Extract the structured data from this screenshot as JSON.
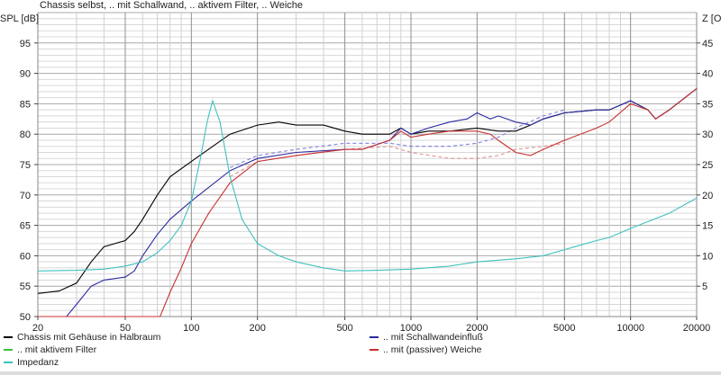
{
  "chart_data": {
    "type": "line",
    "title": "Chassis selbst, .. mit Schallwand, .. aktivem Filter, .. Weiche",
    "xlabel": "",
    "ylabel": "SPL [dB]",
    "y2label": "Z [O",
    "xscale": "log",
    "xlim": [
      20,
      20000
    ],
    "ylim": [
      50,
      100
    ],
    "y2lim": [
      0,
      50
    ],
    "grid": true,
    "legend_placement": "bottom",
    "xticks": [
      "20",
      "50",
      "100",
      "200",
      "500",
      "1000",
      "2000",
      "5000",
      "10000",
      "20000"
    ],
    "yticks": [
      "50",
      "55",
      "60",
      "65",
      "70",
      "75",
      "80",
      "85",
      "90",
      "95"
    ],
    "y2ticks": [
      "5",
      "10",
      "15",
      "20",
      "25",
      "30",
      "35",
      "40",
      "45"
    ],
    "series": [
      {
        "name": "Chassis mit Gehäuse in Halbraum",
        "color": "#000000",
        "axis": "left",
        "x": [
          20,
          25,
          30,
          35,
          40,
          50,
          55,
          60,
          70,
          80,
          100,
          150,
          200,
          250,
          300,
          400,
          500,
          600,
          800,
          900,
          1000,
          1200,
          1500,
          2000,
          2500,
          3000,
          3500,
          4000,
          5000,
          7000,
          8000,
          10000,
          12000,
          13000,
          15000,
          20000
        ],
        "y": [
          53.8,
          54.2,
          55.5,
          59,
          61.5,
          62.5,
          64,
          66,
          70,
          73,
          75.5,
          80,
          81.5,
          82,
          81.5,
          81.5,
          80.5,
          80,
          80,
          81,
          80,
          80.5,
          80.5,
          81,
          80.5,
          80.5,
          81.5,
          82.5,
          83.5,
          84,
          84,
          85.5,
          84,
          82.5,
          84,
          87.5
        ]
      },
      {
        "name": ".. mit Schallwandeinfluß",
        "color": "#2a2aa0",
        "axis": "left",
        "x": [
          20,
          27,
          30,
          35,
          40,
          50,
          55,
          60,
          70,
          80,
          100,
          150,
          200,
          300,
          500,
          600,
          800,
          900,
          1000,
          1200,
          1500,
          1800,
          2000,
          2300,
          2500,
          3000,
          3500,
          4000,
          5000,
          7000,
          8000,
          10000,
          12000,
          13000,
          15000,
          20000
        ],
        "y": [
          50,
          50,
          52,
          55,
          56,
          56.5,
          57.5,
          60,
          63.5,
          66,
          69,
          74,
          76,
          77,
          77.5,
          77.5,
          79,
          81,
          80,
          81,
          82,
          82.5,
          83.5,
          82.5,
          83,
          82,
          81.5,
          82.5,
          83.5,
          84,
          84,
          85.5,
          84,
          82.5,
          84,
          87.5
        ]
      },
      {
        "name": ".. mit aktivem Filter",
        "color": "#40c040",
        "axis": "left",
        "x": [],
        "y": []
      },
      {
        "name": ".. mit (passiver) Weiche",
        "color": "#c83030",
        "axis": "left",
        "x": [
          20,
          50,
          72,
          80,
          90,
          100,
          120,
          150,
          200,
          300,
          500,
          600,
          800,
          900,
          1000,
          1200,
          1500,
          1800,
          2000,
          2300,
          2500,
          3000,
          3500,
          4000,
          5000,
          7000,
          8000,
          10000,
          12000,
          13000,
          15000,
          20000
        ],
        "y": [
          50,
          50,
          50,
          54,
          58,
          62,
          67,
          72,
          75.5,
          76.5,
          77.5,
          77.5,
          79,
          80.5,
          79.5,
          80,
          80.5,
          80.5,
          80.5,
          80,
          79,
          77,
          76.5,
          77.5,
          79,
          81,
          82,
          85,
          84,
          82.5,
          84,
          87.5
        ]
      },
      {
        "name": "Impedanz",
        "color": "#40c0c0",
        "axis": "right",
        "x": [
          20,
          30,
          40,
          50,
          60,
          70,
          80,
          90,
          100,
          110,
          118,
          125,
          135,
          150,
          170,
          200,
          250,
          300,
          400,
          500,
          700,
          1000,
          1500,
          2000,
          3000,
          4000,
          5000,
          7000,
          8000,
          10000,
          15000,
          20000
        ],
        "y": [
          7.5,
          7.6,
          7.8,
          8.3,
          9,
          10.5,
          12.5,
          15,
          19,
          26,
          32,
          35.5,
          32,
          23,
          16,
          12,
          10,
          9,
          8,
          7.5,
          7.6,
          7.8,
          8.3,
          9,
          9.5,
          10,
          11,
          12.5,
          13,
          14.5,
          17,
          19.5
        ]
      },
      {
        "color": "#8080e0",
        "axis": "left",
        "dash": true,
        "x": [
          150,
          200,
          300,
          500,
          800,
          1000,
          1500,
          2000,
          2500,
          3000,
          4000,
          5000
        ],
        "y": [
          74.5,
          76.5,
          77.5,
          78.5,
          78.5,
          78,
          78,
          78.5,
          79.5,
          81,
          83,
          84
        ]
      },
      {
        "color": "#e09090",
        "axis": "left",
        "dash": true,
        "x": [
          150,
          200,
          300,
          500,
          800,
          1000,
          1500,
          2000,
          2500,
          3000,
          4000,
          5000
        ],
        "y": [
          73,
          75.5,
          76.5,
          77.5,
          78,
          77,
          76,
          76,
          76.5,
          77.5,
          78,
          78.5
        ]
      }
    ]
  }
}
